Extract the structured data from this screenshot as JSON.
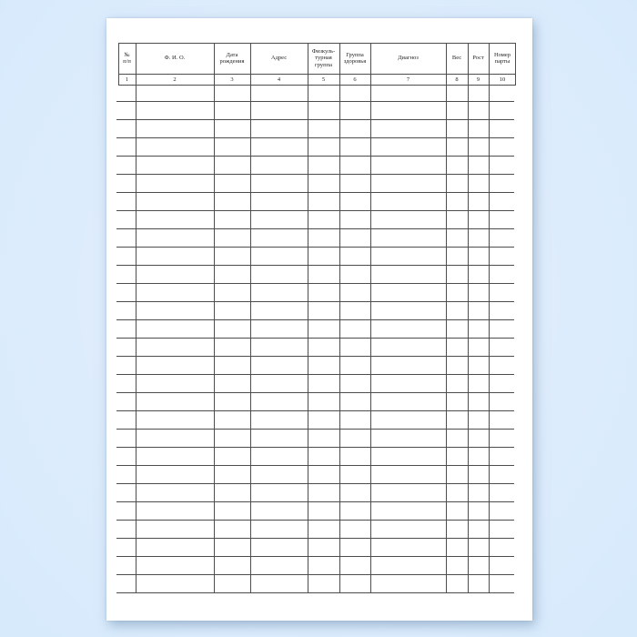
{
  "colors": {
    "background": "#d6eafc",
    "paper": "#ffffff",
    "line": "#4d4d4d",
    "text": "#262626"
  },
  "table": {
    "columns": [
      {
        "number": "1",
        "label": "№ п/п",
        "label_lines": [
          "№",
          "п/п"
        ]
      },
      {
        "number": "2",
        "label": "Ф. И. О.",
        "label_lines": [
          "Ф. И. О."
        ]
      },
      {
        "number": "3",
        "label": "Дата рождения",
        "label_lines": [
          "Дата",
          "рождения"
        ]
      },
      {
        "number": "4",
        "label": "Адрес",
        "label_lines": [
          "Адрес"
        ]
      },
      {
        "number": "5",
        "label": "Физкультурная группа",
        "label_lines": [
          "Физкуль-",
          "турная",
          "группа"
        ]
      },
      {
        "number": "6",
        "label": "Группа здоровья",
        "label_lines": [
          "Группа",
          "здоровья"
        ]
      },
      {
        "number": "7",
        "label": "Диагноз",
        "label_lines": [
          "Диагноз"
        ]
      },
      {
        "number": "8",
        "label": "Вес",
        "label_lines": [
          "Вес"
        ]
      },
      {
        "number": "9",
        "label": "Рост",
        "label_lines": [
          "Рост"
        ]
      },
      {
        "number": "10",
        "label": "Номер парты",
        "label_lines": [
          "Номер",
          "парты"
        ]
      }
    ],
    "blank_row_count": 28
  }
}
